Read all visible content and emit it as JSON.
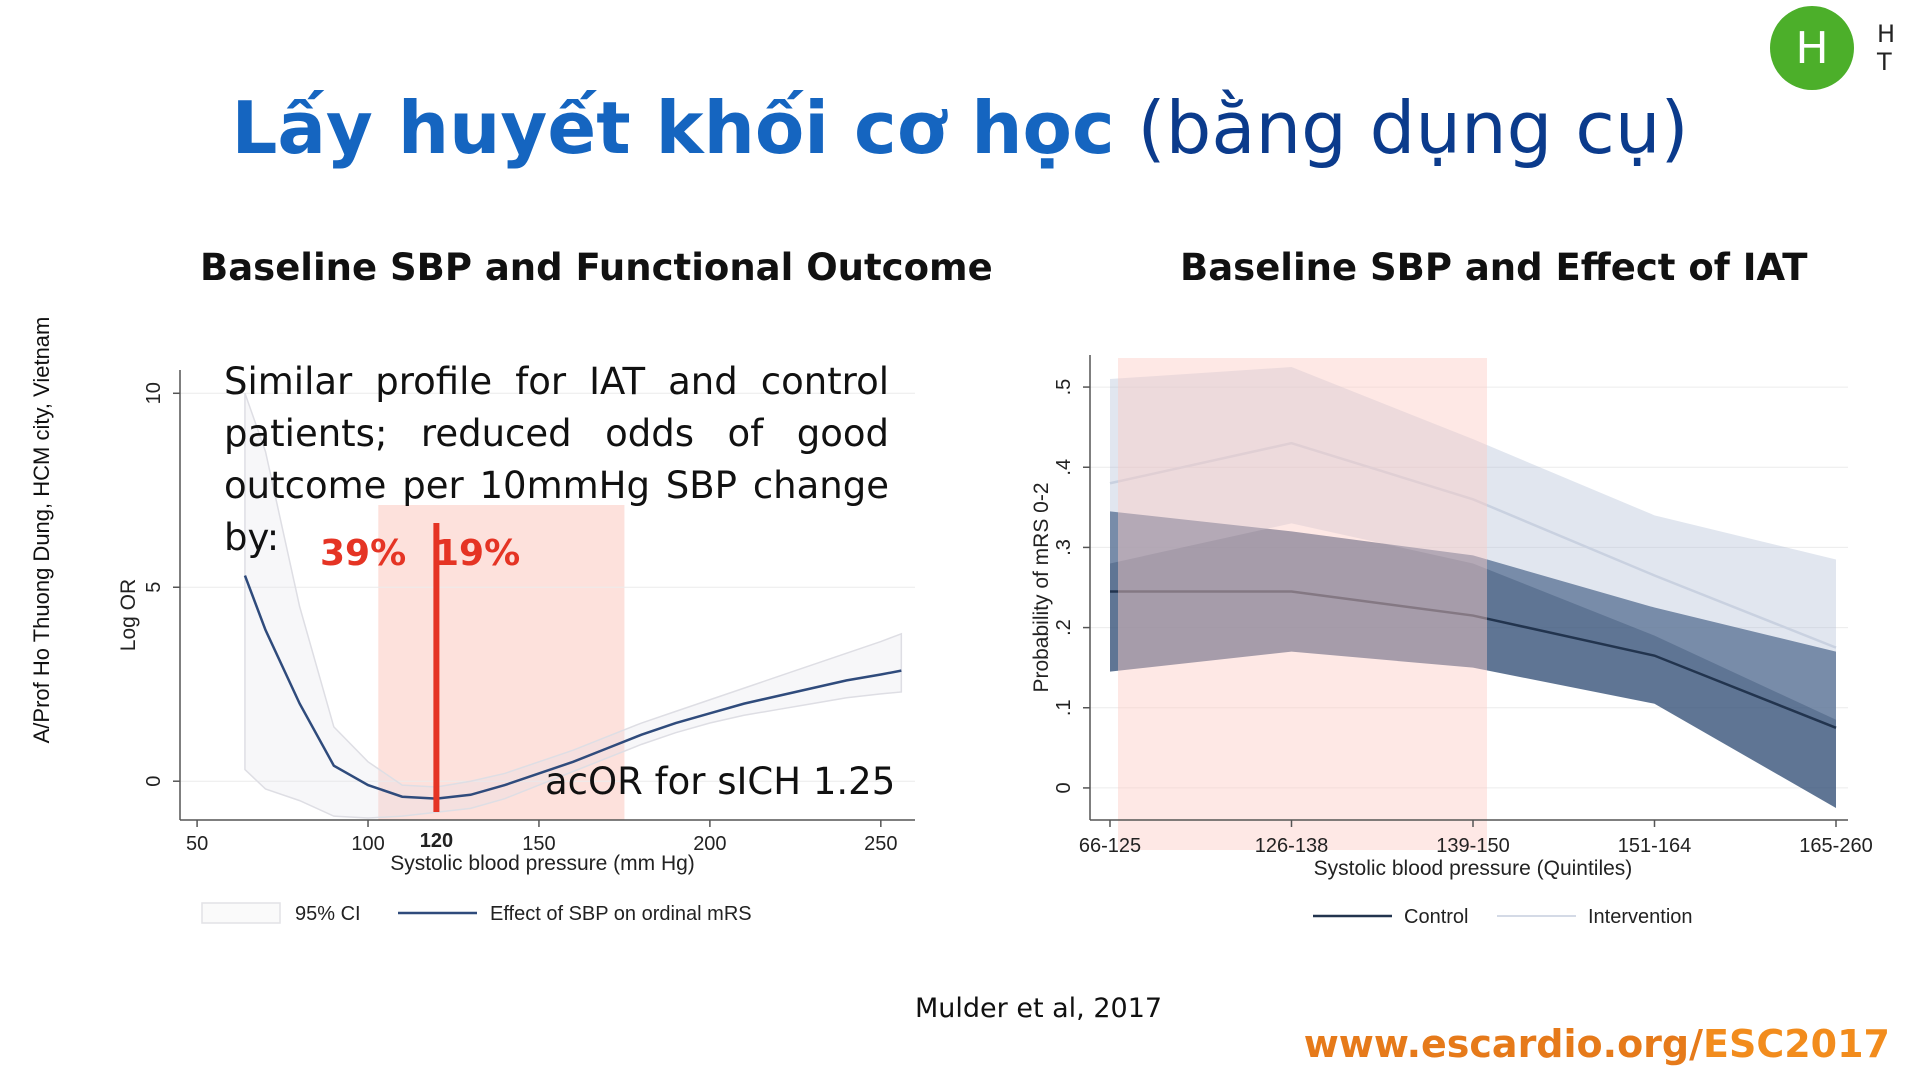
{
  "slide": {
    "title_bold": "Lấy huyết khối cơ học",
    "title_rest": " (bằng dụng cụ)",
    "side_text": "A/Prof Ho Thuong Dung, HCM city, Vietnam",
    "avatar_letter": "H",
    "avatar_text": "H T",
    "citation": "Mulder et al, 2017",
    "footer_prefix": "www.escardio.org/",
    "footer_esc": "ESC2017",
    "colors": {
      "title": "#1565c0",
      "footer": "#e67a1a",
      "avatar": "#4caf2a",
      "highlight": "#fde1dc",
      "marker": "#e53424"
    }
  },
  "left_panel": {
    "subtitle": "Baseline SBP and Functional Outcome",
    "note": "Similar profile for IAT and control patients; reduced odds of good outcome per 10mmHg SBP change by:",
    "pct_left": "39%",
    "pct_right": "19%",
    "acor": "acOR for sICH 1.25",
    "marker_label": "120"
  },
  "right_panel": {
    "subtitle": "Baseline SBP and Effect of IAT"
  },
  "chart_data": [
    {
      "type": "line",
      "xlabel": "Systolic blood pressure (mm Hg)",
      "ylabel": "Log OR",
      "xlim": [
        45,
        260
      ],
      "ylim": [
        -1,
        10.6
      ],
      "xticks": [
        50,
        100,
        150,
        200,
        250
      ],
      "xtick_labels": [
        "50",
        "100",
        "150",
        "200",
        "250"
      ],
      "yticks": [
        0,
        5,
        10
      ],
      "ytick_labels": [
        "0",
        "5",
        "10"
      ],
      "highlight_range": [
        103,
        175
      ],
      "marker_x": 120,
      "series": [
        {
          "name": "Effect of SBP on ordinal mRS",
          "x": [
            64,
            70,
            80,
            90,
            100,
            110,
            120,
            130,
            140,
            150,
            160,
            170,
            180,
            190,
            200,
            210,
            220,
            230,
            240,
            250,
            256
          ],
          "y": [
            5.3,
            3.9,
            2.0,
            0.4,
            -0.1,
            -0.4,
            -0.45,
            -0.35,
            -0.1,
            0.2,
            0.5,
            0.85,
            1.2,
            1.5,
            1.75,
            2.0,
            2.2,
            2.4,
            2.6,
            2.75,
            2.85
          ]
        }
      ],
      "ci": {
        "name": "95% CI",
        "x": [
          64,
          70,
          80,
          90,
          100,
          110,
          120,
          130,
          140,
          150,
          160,
          170,
          180,
          190,
          200,
          210,
          220,
          230,
          240,
          250,
          256
        ],
        "lower": [
          0.3,
          -0.2,
          -0.5,
          -0.9,
          -0.95,
          -0.9,
          -0.8,
          -0.7,
          -0.45,
          -0.1,
          0.25,
          0.6,
          0.95,
          1.25,
          1.5,
          1.7,
          1.85,
          2.0,
          2.15,
          2.25,
          2.3
        ],
        "upper": [
          10.0,
          8.5,
          4.5,
          1.4,
          0.5,
          -0.1,
          -0.15,
          0.0,
          0.2,
          0.5,
          0.8,
          1.15,
          1.5,
          1.8,
          2.1,
          2.4,
          2.7,
          3.0,
          3.3,
          3.6,
          3.8
        ]
      },
      "legend": [
        {
          "name": "95% CI",
          "kind": "band"
        },
        {
          "name": "Effect of SBP on ordinal mRS",
          "kind": "line"
        }
      ]
    },
    {
      "type": "area",
      "xlabel": "Systolic blood pressure (Quintiles)",
      "ylabel": "Probability of mRS 0-2",
      "categories": [
        "66-125",
        "126-138",
        "139-150",
        "151-164",
        "165-260"
      ],
      "ylim": [
        -0.04,
        0.54
      ],
      "yticks": [
        0,
        0.1,
        0.2,
        0.3,
        0.4,
        0.5
      ],
      "ytick_labels": [
        "0",
        ".1",
        ".2",
        ".3",
        ".4",
        ".5"
      ],
      "highlight_categories": [
        "66-125",
        "139-150"
      ],
      "series": [
        {
          "name": "Control",
          "values": [
            0.245,
            0.245,
            0.215,
            0.165,
            0.075
          ],
          "lower": [
            0.145,
            0.17,
            0.15,
            0.105,
            -0.025
          ],
          "upper": [
            0.345,
            0.32,
            0.29,
            0.225,
            0.17
          ]
        },
        {
          "name": "Intervention",
          "values": [
            0.38,
            0.43,
            0.36,
            0.265,
            0.175
          ],
          "lower": [
            0.28,
            0.33,
            0.28,
            0.19,
            0.085
          ],
          "upper": [
            0.51,
            0.525,
            0.435,
            0.34,
            0.285
          ]
        }
      ],
      "legend": [
        {
          "name": "Control",
          "kind": "line"
        },
        {
          "name": "Intervention",
          "kind": "line"
        }
      ]
    }
  ]
}
